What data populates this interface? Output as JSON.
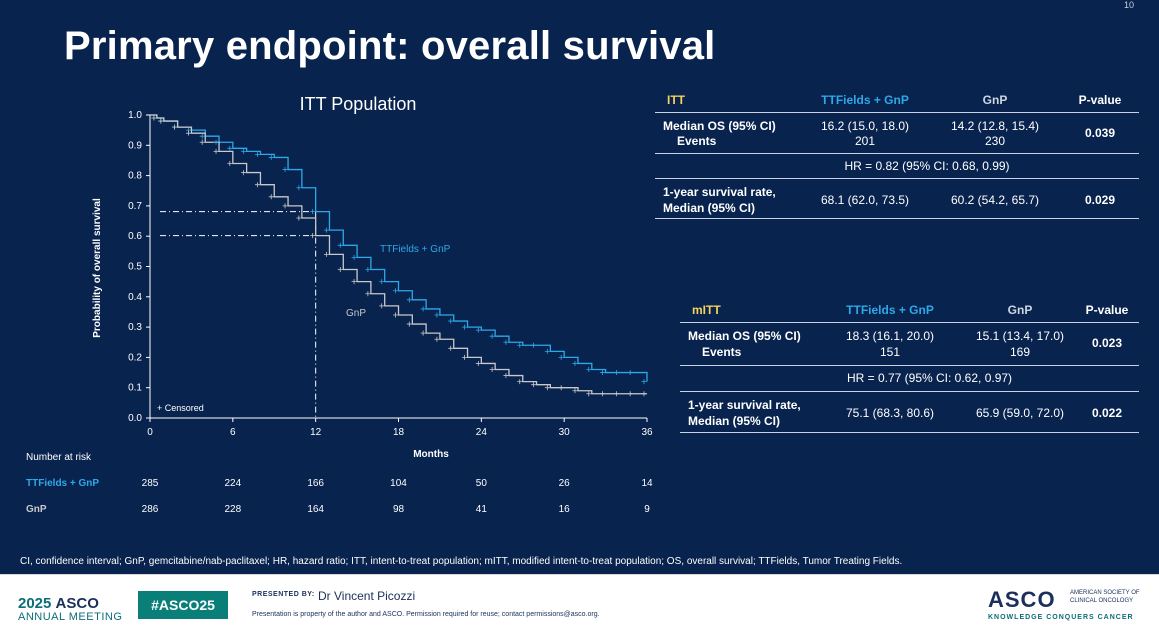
{
  "slide": {
    "number": "10",
    "title": "Primary endpoint: overall survival",
    "footnote": "CI, confidence interval; GnP, gemcitabine/nab-paclitaxel; HR, hazard ratio; ITT, intent-to-treat population; mITT, modified intent-to-treat population; OS, overall survival; TTFields, Tumor Treating Fields."
  },
  "colors": {
    "background": "#08234e",
    "ttfields": "#2ea8e8",
    "gnp": "#c9c9c9",
    "header_yellow": "#f4d35e"
  },
  "chart_data": {
    "type": "line",
    "title": "ITT Population",
    "xlabel": "Months",
    "ylabel": "Probability of overall survival",
    "xlim": [
      0,
      36
    ],
    "ylim": [
      0.0,
      1.0
    ],
    "xticks": [
      0,
      6,
      12,
      18,
      24,
      30,
      36
    ],
    "yticks": [
      0.0,
      0.1,
      0.2,
      0.3,
      0.4,
      0.5,
      0.6,
      0.7,
      0.8,
      0.9,
      1.0
    ],
    "censored_label": "+ Censored",
    "reference_lines": {
      "x": 12,
      "y": [
        0.681,
        0.602
      ]
    },
    "series": [
      {
        "name": "TTFields + GnP",
        "color": "#2ea8e8",
        "x": [
          0,
          0.5,
          1,
          2,
          3,
          4,
          5,
          6,
          7,
          8,
          9,
          10,
          11,
          12,
          13,
          14,
          15,
          16,
          17,
          18,
          19,
          20,
          21,
          22,
          23,
          24,
          25,
          26,
          27,
          28,
          29,
          30,
          31,
          32,
          33,
          34,
          35,
          36
        ],
        "y": [
          1.0,
          0.99,
          0.98,
          0.96,
          0.95,
          0.93,
          0.91,
          0.89,
          0.88,
          0.87,
          0.86,
          0.82,
          0.76,
          0.681,
          0.62,
          0.57,
          0.53,
          0.49,
          0.45,
          0.42,
          0.39,
          0.36,
          0.34,
          0.32,
          0.3,
          0.29,
          0.27,
          0.25,
          0.24,
          0.24,
          0.22,
          0.2,
          0.18,
          0.16,
          0.15,
          0.15,
          0.15,
          0.12
        ]
      },
      {
        "name": "GnP",
        "color": "#c9c9c9",
        "x": [
          0,
          0.5,
          1,
          2,
          3,
          4,
          5,
          6,
          7,
          8,
          9,
          10,
          11,
          12,
          13,
          14,
          15,
          16,
          17,
          18,
          19,
          20,
          21,
          22,
          23,
          24,
          25,
          26,
          27,
          28,
          29,
          30,
          31,
          32,
          33,
          34,
          35,
          36
        ],
        "y": [
          1.0,
          0.99,
          0.98,
          0.96,
          0.94,
          0.91,
          0.88,
          0.84,
          0.81,
          0.77,
          0.73,
          0.7,
          0.66,
          0.602,
          0.54,
          0.49,
          0.45,
          0.41,
          0.37,
          0.34,
          0.31,
          0.28,
          0.26,
          0.23,
          0.2,
          0.18,
          0.16,
          0.14,
          0.12,
          0.11,
          0.1,
          0.1,
          0.09,
          0.08,
          0.08,
          0.08,
          0.08,
          0.08
        ]
      }
    ],
    "risk_table": {
      "label": "Number at risk",
      "rows": [
        {
          "name": "TTFields + GnP",
          "color": "#2ea8e8",
          "values": [
            285,
            224,
            166,
            104,
            50,
            26,
            14
          ]
        },
        {
          "name": "GnP",
          "color": "#c9c9c9",
          "values": [
            286,
            228,
            164,
            98,
            41,
            16,
            9
          ]
        }
      ]
    }
  },
  "itt_table": {
    "headers": [
      "ITT",
      "TTFields + GnP",
      "GnP",
      "P-value"
    ],
    "rows": [
      {
        "label1": "Median OS (95% CI)",
        "label2": "Events",
        "ttf1": "16.2 (15.0, 18.0)",
        "ttf2": "201",
        "gnp1": "14.2 (12.8, 15.4)",
        "gnp2": "230",
        "p": "0.039"
      },
      {
        "span": "HR = 0.82 (95% CI: 0.68, 0.99)"
      },
      {
        "label1": "1-year survival rate,",
        "label2": "Median (95% CI)",
        "ttf1": "68.1 (62.0, 73.5)",
        "gnp1": "60.2 (54.2, 65.7)",
        "p": "0.029"
      }
    ]
  },
  "mitt_table": {
    "headers": [
      "mITT",
      "TTFields + GnP",
      "GnP",
      "P-value"
    ],
    "rows": [
      {
        "label1": "Median OS (95% CI)",
        "label2": "Events",
        "ttf1": "18.3 (16.1, 20.0)",
        "ttf2": "151",
        "gnp1": "15.1 (13.4, 17.0)",
        "gnp2": "169",
        "p": "0.023"
      },
      {
        "span": "HR = 0.77 (95% CI: 0.62, 0.97)"
      },
      {
        "label1": "1-year survival rate,",
        "label2": "Median (95% CI)",
        "ttf1": "75.1 (68.3, 80.6)",
        "gnp1": "65.9 (59.0, 72.0)",
        "p": "0.022"
      }
    ]
  },
  "footer": {
    "year": "2025",
    "asco": "ASCO",
    "meeting": "ANNUAL MEETING",
    "hashtag": "#ASCO25",
    "presented_by": "PRESENTED BY:",
    "presenter": "Dr Vincent Picozzi",
    "notice": "Presentation is property of the author and ASCO. Permission required for reuse; contact permissions@asco.org.",
    "logo": "ASCO",
    "society": "AMERICAN SOCIETY OF CLINICAL ONCOLOGY",
    "tagline": "KNOWLEDGE CONQUERS CANCER"
  }
}
